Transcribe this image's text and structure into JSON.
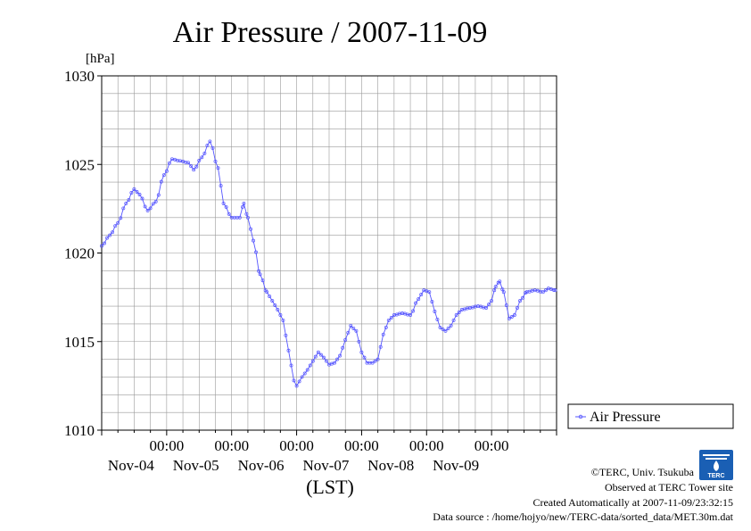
{
  "chart_data": {
    "type": "line",
    "title": "Air Pressure / 2007-11-09",
    "ylabel": "[hPa]",
    "xlabel": "(LST)",
    "ylim": [
      1010,
      1030
    ],
    "yticks": [
      "1030",
      "1025",
      "1020",
      "1015",
      "1010"
    ],
    "xticks": [
      {
        "time": "00:00",
        "date": "Nov-04"
      },
      {
        "time": "00:00",
        "date": "Nov-05"
      },
      {
        "time": "00:00",
        "date": "Nov-06"
      },
      {
        "time": "00:00",
        "date": "Nov-07"
      },
      {
        "time": "00:00",
        "date": "Nov-08"
      },
      {
        "time": "00:00",
        "date": "Nov-09"
      }
    ],
    "x_range": [
      "2007-11-03 00:00",
      "2007-11-09 23:30"
    ],
    "grid": true,
    "legend_position": "right",
    "color": "#5555ff",
    "series": [
      {
        "name": "Air Pressure",
        "points": [
          [
            "2007-11-03 00:00",
            1020.4
          ],
          [
            "2007-11-03 03:00",
            1021.0
          ],
          [
            "2007-11-03 06:00",
            1021.7
          ],
          [
            "2007-11-03 09:00",
            1022.8
          ],
          [
            "2007-11-03 12:00",
            1023.6
          ],
          [
            "2007-11-03 14:00",
            1023.3
          ],
          [
            "2007-11-03 17:00",
            1022.4
          ],
          [
            "2007-11-03 20:00",
            1022.9
          ],
          [
            "2007-11-03 23:00",
            1024.4
          ],
          [
            "2007-11-04 02:00",
            1025.3
          ],
          [
            "2007-11-04 05:00",
            1025.2
          ],
          [
            "2007-11-04 08:00",
            1025.1
          ],
          [
            "2007-11-04 10:00",
            1024.7
          ],
          [
            "2007-11-04 13:00",
            1025.4
          ],
          [
            "2007-11-04 16:00",
            1026.3
          ],
          [
            "2007-11-04 19:00",
            1024.8
          ],
          [
            "2007-11-04 21:00",
            1022.8
          ],
          [
            "2007-11-05 00:00",
            1022.0
          ],
          [
            "2007-11-05 03:00",
            1022.0
          ],
          [
            "2007-11-05 04:30",
            1022.8
          ],
          [
            "2007-11-05 06:00",
            1022.0
          ],
          [
            "2007-11-05 08:00",
            1020.7
          ],
          [
            "2007-11-05 10:30",
            1018.8
          ],
          [
            "2007-11-05 13:00",
            1017.8
          ],
          [
            "2007-11-05 15:00",
            1017.3
          ],
          [
            "2007-11-05 17:00",
            1016.8
          ],
          [
            "2007-11-05 19:00",
            1016.2
          ],
          [
            "2007-11-05 21:00",
            1014.5
          ],
          [
            "2007-11-05 23:00",
            1012.8
          ],
          [
            "2007-11-06 00:00",
            1012.5
          ],
          [
            "2007-11-06 02:00",
            1013.0
          ],
          [
            "2007-11-06 04:00",
            1013.4
          ],
          [
            "2007-11-06 06:00",
            1013.9
          ],
          [
            "2007-11-06 08:00",
            1014.4
          ],
          [
            "2007-11-06 10:00",
            1014.1
          ],
          [
            "2007-11-06 12:00",
            1013.7
          ],
          [
            "2007-11-06 14:00",
            1013.8
          ],
          [
            "2007-11-06 16:00",
            1014.2
          ],
          [
            "2007-11-06 18:00",
            1015.1
          ],
          [
            "2007-11-06 20:00",
            1015.9
          ],
          [
            "2007-11-06 22:00",
            1015.6
          ],
          [
            "2007-11-07 00:00",
            1014.4
          ],
          [
            "2007-11-07 02:00",
            1013.8
          ],
          [
            "2007-11-07 04:00",
            1013.8
          ],
          [
            "2007-11-07 06:00",
            1014.0
          ],
          [
            "2007-11-07 08:00",
            1015.4
          ],
          [
            "2007-11-07 10:00",
            1016.2
          ],
          [
            "2007-11-07 12:00",
            1016.5
          ],
          [
            "2007-11-07 15:00",
            1016.6
          ],
          [
            "2007-11-07 18:00",
            1016.5
          ],
          [
            "2007-11-07 21:00",
            1017.4
          ],
          [
            "2007-11-07 23:00",
            1017.9
          ],
          [
            "2007-11-08 01:00",
            1017.8
          ],
          [
            "2007-11-08 03:00",
            1016.7
          ],
          [
            "2007-11-08 05:00",
            1015.8
          ],
          [
            "2007-11-08 07:00",
            1015.6
          ],
          [
            "2007-11-08 09:00",
            1015.9
          ],
          [
            "2007-11-08 11:00",
            1016.5
          ],
          [
            "2007-11-08 13:00",
            1016.8
          ],
          [
            "2007-11-08 16:00",
            1016.9
          ],
          [
            "2007-11-08 19:00",
            1017.0
          ],
          [
            "2007-11-08 22:00",
            1016.9
          ],
          [
            "2007-11-09 00:00",
            1017.3
          ],
          [
            "2007-11-09 01:30",
            1018.1
          ],
          [
            "2007-11-09 03:00",
            1018.4
          ],
          [
            "2007-11-09 04:30",
            1017.8
          ],
          [
            "2007-11-09 06:30",
            1016.3
          ],
          [
            "2007-11-09 08:30",
            1016.5
          ],
          [
            "2007-11-09 10:30",
            1017.3
          ],
          [
            "2007-11-09 13:00",
            1017.8
          ],
          [
            "2007-11-09 16:00",
            1017.9
          ],
          [
            "2007-11-09 19:00",
            1017.8
          ],
          [
            "2007-11-09 21:00",
            1018.0
          ],
          [
            "2007-11-09 23:30",
            1017.9
          ]
        ]
      }
    ]
  },
  "credits": {
    "copyright": "©TERC, Univ. Tsukuba",
    "observed": "Observed at TERC Tower site",
    "created": "Created Automatically at 2007-11-09/23:32:15",
    "source": "Data source : /home/hojyo/new/TERC-data/sorted_data/MET.30m.dat",
    "logo_text": "TERC"
  }
}
